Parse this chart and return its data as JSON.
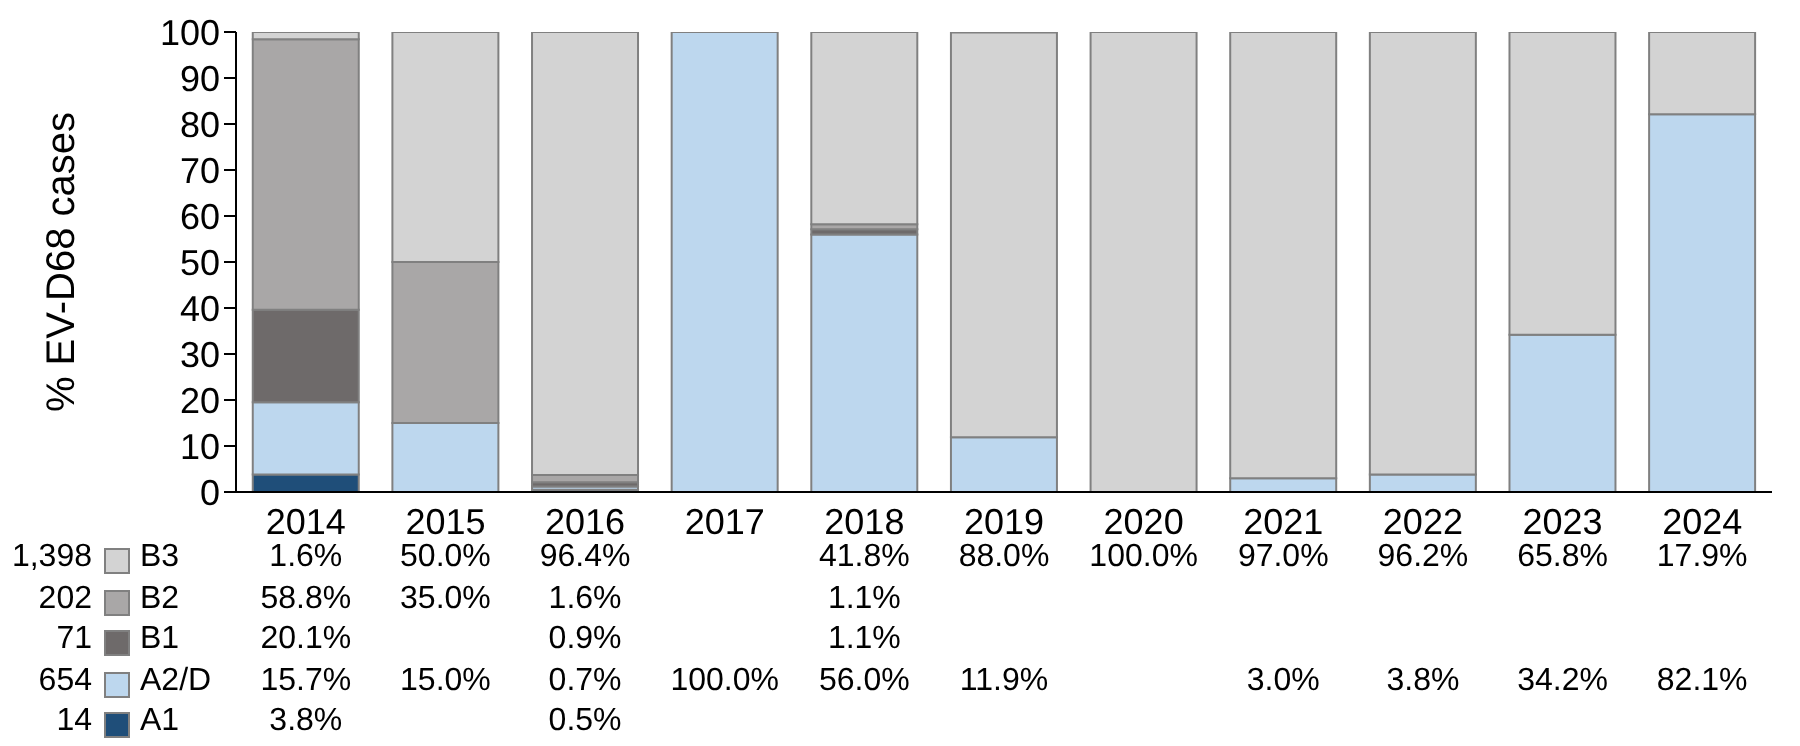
{
  "chart_data": {
    "type": "bar",
    "stacked": true,
    "ylabel": "% EV-D68 cases",
    "categories": [
      "2014",
      "2015",
      "2016",
      "2017",
      "2018",
      "2019",
      "2020",
      "2021",
      "2022",
      "2023",
      "2024"
    ],
    "ylim": [
      0,
      100
    ],
    "yticks": [
      0,
      10,
      20,
      30,
      40,
      50,
      60,
      70,
      80,
      90,
      100
    ],
    "grid": false,
    "legend": "bottom left",
    "annotations": [
      "14",
      "654",
      "71",
      "202",
      "1,398"
    ],
    "series": [
      {
        "name": "A1",
        "color": "#1f4e79",
        "values": [
          3.8,
          null,
          0.5,
          null,
          null,
          null,
          null,
          null,
          null,
          null,
          null
        ],
        "value_labels": [
          "3.8%",
          null,
          "0.5%",
          null,
          null,
          null,
          null,
          null,
          null,
          null,
          null
        ]
      },
      {
        "name": "A2/D",
        "color": "#bdd7ee",
        "values": [
          15.7,
          15.0,
          0.7,
          100.0,
          56.0,
          11.9,
          null,
          3.0,
          3.8,
          34.2,
          82.1
        ],
        "value_labels": [
          "15.7%",
          "15.0%",
          "0.7%",
          "100.0%",
          "56.0%",
          "11.9%",
          null,
          "3.0%",
          "3.8%",
          "34.2%",
          "82.1%"
        ]
      },
      {
        "name": "B1",
        "color": "#6e6a6a",
        "values": [
          20.1,
          null,
          0.9,
          null,
          1.1,
          null,
          null,
          null,
          null,
          null,
          null
        ],
        "value_labels": [
          "20.1%",
          null,
          "0.9%",
          null,
          "1.1%",
          null,
          null,
          null,
          null,
          null,
          null
        ]
      },
      {
        "name": "B2",
        "color": "#a9a7a7",
        "values": [
          58.8,
          35.0,
          1.6,
          null,
          1.1,
          null,
          null,
          null,
          null,
          null,
          null
        ],
        "value_labels": [
          "58.8%",
          "35.0%",
          "1.6%",
          null,
          "1.1%",
          null,
          null,
          null,
          null,
          null,
          null
        ]
      },
      {
        "name": "B3",
        "color": "#d3d3d3",
        "values": [
          1.6,
          50.0,
          96.4,
          null,
          41.8,
          88.0,
          100.0,
          97.0,
          96.2,
          65.8,
          17.9
        ],
        "value_labels": [
          "1.6%",
          "50.0%",
          "96.4%",
          null,
          "41.8%",
          "88.0%",
          "100.0%",
          "97.0%",
          "96.2%",
          "65.8%",
          "17.9%"
        ]
      }
    ]
  }
}
